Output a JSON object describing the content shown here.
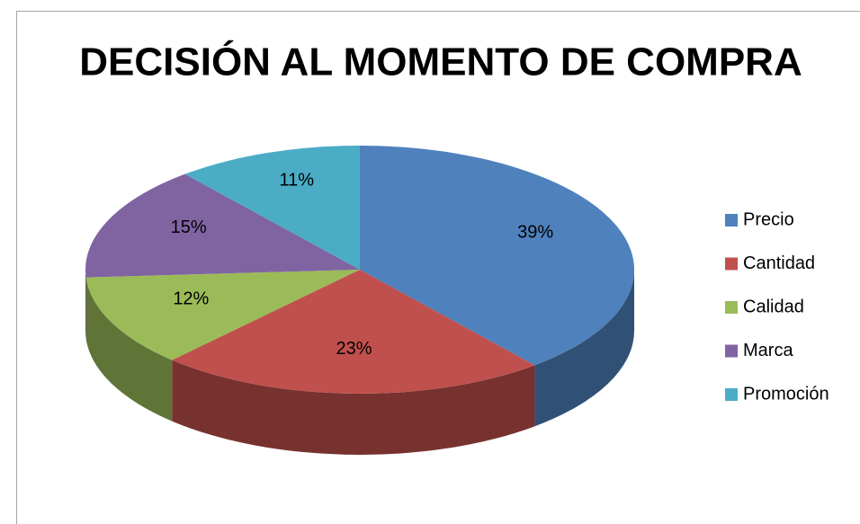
{
  "chart_data": {
    "type": "pie3d",
    "title": "DECISIÓN AL MOMENTO DE COMPRA",
    "categories": [
      "Precio",
      "Cantidad",
      "Calidad",
      "Marca",
      "Promoción"
    ],
    "values": [
      39,
      23,
      12,
      15,
      11
    ],
    "value_labels": [
      "39%",
      "23%",
      "12%",
      "15%",
      "11%"
    ],
    "colors": [
      "#4f81bd",
      "#c0504d",
      "#9bbb59",
      "#8064a2",
      "#4bacc6"
    ],
    "legend": "right"
  }
}
